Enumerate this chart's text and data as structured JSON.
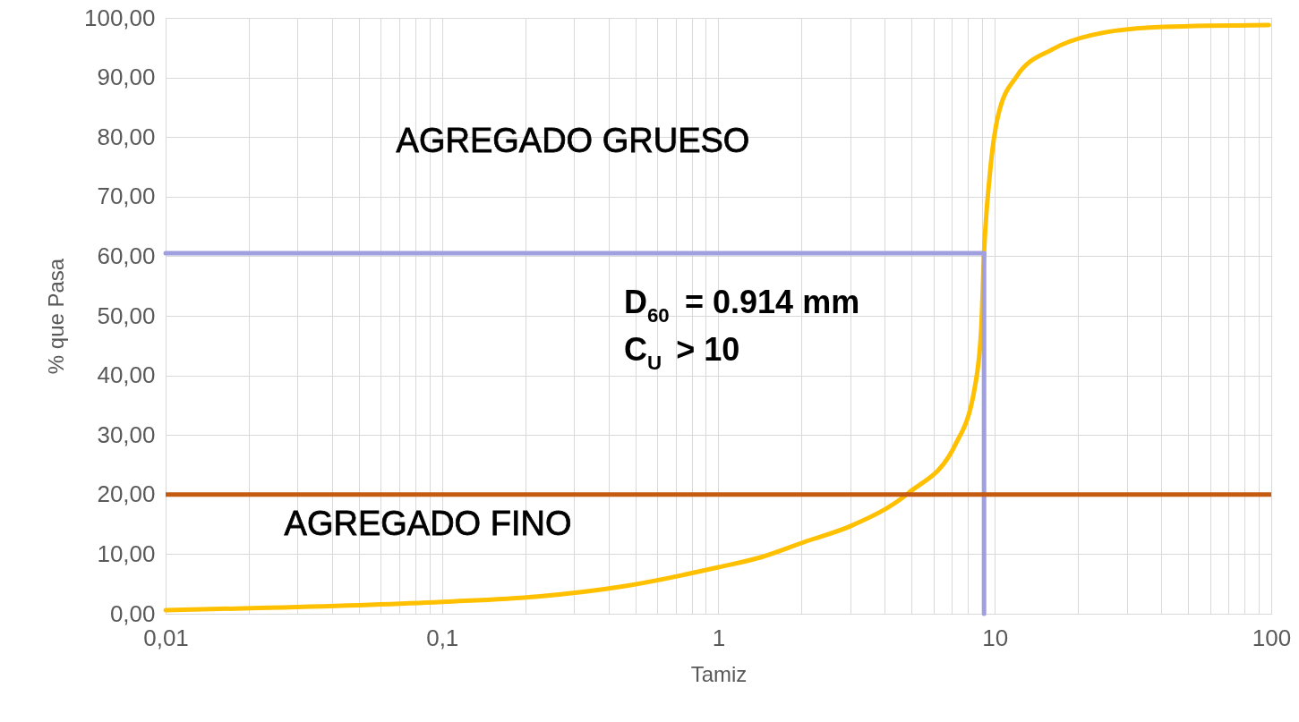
{
  "chart_data": {
    "type": "line",
    "xlabel": "Tamiz",
    "ylabel": "% que Pasa",
    "log": "x",
    "grid": true,
    "xlim": [
      0.01,
      100
    ],
    "ylim": [
      0,
      100
    ],
    "xticks": [
      {
        "value": 0.01,
        "label": "0,01"
      },
      {
        "value": 0.02,
        "label": null
      },
      {
        "value": 0.03,
        "label": null
      },
      {
        "value": 0.04,
        "label": null
      },
      {
        "value": 0.05,
        "label": null
      },
      {
        "value": 0.06,
        "label": null
      },
      {
        "value": 0.07,
        "label": null
      },
      {
        "value": 0.08,
        "label": null
      },
      {
        "value": 0.09,
        "label": null
      },
      {
        "value": 0.1,
        "label": "0,1"
      },
      {
        "value": 0.2,
        "label": null
      },
      {
        "value": 0.3,
        "label": null
      },
      {
        "value": 0.4,
        "label": null
      },
      {
        "value": 0.5,
        "label": null
      },
      {
        "value": 0.6,
        "label": null
      },
      {
        "value": 0.7,
        "label": null
      },
      {
        "value": 0.8,
        "label": null
      },
      {
        "value": 0.9,
        "label": null
      },
      1,
      {
        "value": 2,
        "label": null
      },
      {
        "value": 3,
        "label": null
      },
      {
        "value": 4,
        "label": null
      },
      {
        "value": 5,
        "label": null
      },
      {
        "value": 6,
        "label": null
      },
      {
        "value": 7,
        "label": null
      },
      {
        "value": 8,
        "label": null
      },
      {
        "value": 9,
        "label": null
      },
      10,
      {
        "value": 20,
        "label": null
      },
      {
        "value": 30,
        "label": null
      },
      {
        "value": 40,
        "label": null
      },
      {
        "value": 50,
        "label": null
      },
      {
        "value": 60,
        "label": null
      },
      {
        "value": 70,
        "label": null
      },
      {
        "value": 80,
        "label": null
      },
      {
        "value": 90,
        "label": null
      },
      100
    ],
    "yticks": [
      {
        "value": 0,
        "label": "0,00"
      },
      {
        "value": 10,
        "label": "10,00"
      },
      {
        "value": 20,
        "label": "20,00"
      },
      {
        "value": 30,
        "label": "30,00"
      },
      {
        "value": 40,
        "label": "40,00"
      },
      {
        "value": 50,
        "label": "50,00"
      },
      {
        "value": 60,
        "label": "60,00"
      },
      {
        "value": 70,
        "label": "70,00"
      },
      {
        "value": 80,
        "label": "80,00"
      },
      {
        "value": 90,
        "label": "90,00"
      },
      {
        "value": 100,
        "label": "100,00"
      }
    ],
    "series": [
      {
        "color": "#ffc000",
        "x": [
          0.01,
          0.0235,
          0.1,
          0.222,
          0.466,
          1,
          1.43,
          2.09,
          3.0,
          4.88,
          7.2,
          8.47,
          8.93,
          9.14,
          9.6,
          10.3,
          12.0,
          16.1,
          22.3,
          40.8,
          98
        ],
        "values": [
          0.6,
          1.0,
          2.0,
          2.9,
          4.7,
          7.8,
          9.5,
          12.2,
          14.7,
          20.3,
          28.4,
          38.1,
          47.9,
          60.5,
          73.9,
          83.8,
          90.2,
          94.7,
          97.1,
          98.5,
          98.8
        ]
      },
      {
        "color": "#a0a0e0",
        "x": [
          0.01,
          9.14
        ],
        "values": [
          60.5,
          60.5
        ]
      },
      {
        "color": "#a0a0e0",
        "x": [
          9.14,
          9.14
        ],
        "values": [
          0,
          60.5
        ]
      }
    ],
    "ref_lines": [
      {
        "axis": "y",
        "value": 20,
        "color": "#c55a11"
      }
    ],
    "annotations": [
      "AGREGADO GRUESO",
      "AGREGADO FINO",
      "D$_{60}$ = 0.914 mm",
      "C$_{U}$ > 10"
    ]
  }
}
